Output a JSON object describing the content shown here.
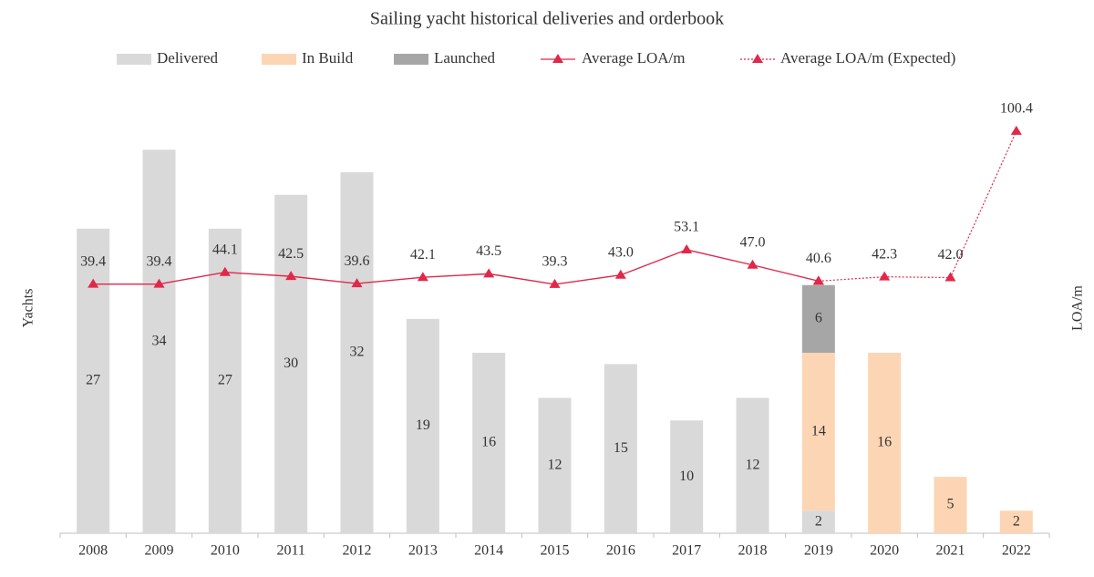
{
  "chart_data": {
    "type": "bar-line",
    "title": "Sailing yacht historical deliveries and orderbook",
    "y_label": "Yachts",
    "y2_label": "LOA/m",
    "categories": [
      "2008",
      "2009",
      "2010",
      "2011",
      "2012",
      "2013",
      "2014",
      "2015",
      "2016",
      "2017",
      "2018",
      "2019",
      "2020",
      "2021",
      "2022"
    ],
    "ylim": [
      0,
      40
    ],
    "y2lim": [
      -60,
      120
    ],
    "stacked": true,
    "series": [
      {
        "name": "Delivered",
        "type": "bar",
        "color": "#d9d9d9",
        "values": [
          27,
          34,
          27,
          30,
          32,
          19,
          16,
          12,
          15,
          10,
          12,
          2,
          null,
          null,
          null
        ]
      },
      {
        "name": "In Build",
        "type": "bar",
        "color": "#fcd5b4",
        "values": [
          null,
          null,
          null,
          null,
          null,
          null,
          null,
          null,
          null,
          null,
          null,
          14,
          16,
          5,
          2
        ]
      },
      {
        "name": "Launched",
        "type": "bar",
        "color": "#a6a6a6",
        "values": [
          null,
          null,
          null,
          null,
          null,
          null,
          null,
          null,
          null,
          null,
          null,
          6,
          null,
          null,
          null
        ]
      },
      {
        "name": "Average LOA/m",
        "type": "line",
        "axis": "y2",
        "style": "solid",
        "color": "#e0284a",
        "values": [
          39.4,
          39.4,
          44.1,
          42.5,
          39.6,
          42.1,
          43.5,
          39.3,
          43.0,
          53.1,
          47.0,
          40.6,
          null,
          null,
          null
        ],
        "value_labels": [
          "39.4",
          "39.4",
          "44.1",
          "42.5",
          "39.6",
          "42.1",
          "43.5",
          "39.3",
          "43.0",
          "53.1",
          "47.0",
          "40.6",
          null,
          null,
          null
        ]
      },
      {
        "name": "Average LOA/m (Expected)",
        "type": "line",
        "axis": "y2",
        "style": "dotted",
        "color": "#e0284a",
        "values": [
          null,
          null,
          null,
          null,
          null,
          null,
          null,
          null,
          null,
          null,
          null,
          40.6,
          42.3,
          42.0,
          100.4
        ],
        "value_labels": [
          null,
          null,
          null,
          null,
          null,
          null,
          null,
          null,
          null,
          null,
          null,
          null,
          "42.3",
          "42.0",
          "100.4"
        ]
      }
    ]
  }
}
